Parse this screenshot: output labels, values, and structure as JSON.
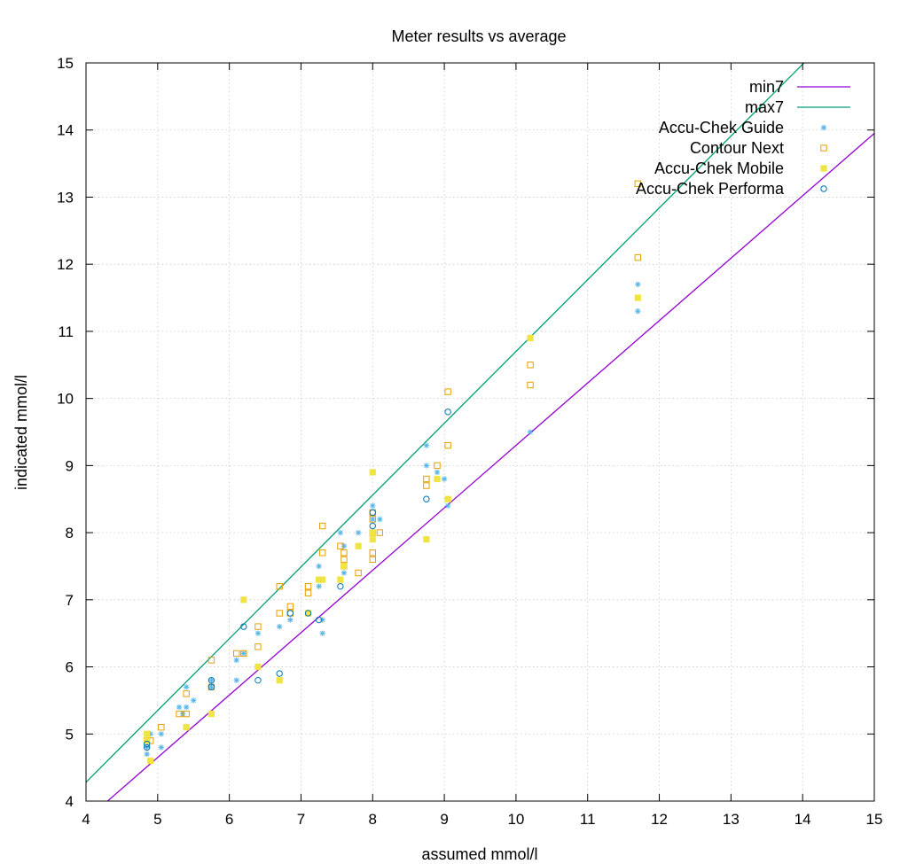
{
  "chart_data": {
    "type": "scatter",
    "title": "Meter results vs average",
    "xlabel": "assumed mmol/l",
    "ylabel": "indicated mmol/l",
    "xlim": [
      4,
      15
    ],
    "ylim": [
      4,
      15
    ],
    "xticks": [
      "4",
      "5",
      "6",
      "7",
      "8",
      "9",
      "10",
      "11",
      "12",
      "13",
      "14",
      "15"
    ],
    "yticks": [
      "4",
      "5",
      "6",
      "7",
      "8",
      "9",
      "10",
      "11",
      "12",
      "13",
      "14",
      "15"
    ],
    "grid": true,
    "legend_position": "top-right",
    "lines": [
      {
        "name": "min7",
        "color": "#9400d3",
        "slope": 0.93,
        "intercept": 0
      },
      {
        "name": "max7",
        "color": "#009e73",
        "slope": 1.07,
        "intercept": 0
      }
    ],
    "series": [
      {
        "name": "Accu-Chek Guide",
        "marker": "asterisk",
        "color": "#56b4e9",
        "points": [
          [
            4.85,
            4.7
          ],
          [
            4.85,
            4.8
          ],
          [
            4.9,
            5.0
          ],
          [
            5.05,
            5.0
          ],
          [
            5.05,
            4.8
          ],
          [
            5.3,
            5.4
          ],
          [
            5.35,
            5.3
          ],
          [
            5.4,
            5.7
          ],
          [
            5.4,
            5.4
          ],
          [
            5.5,
            5.5
          ],
          [
            5.75,
            5.7
          ],
          [
            5.75,
            5.8
          ],
          [
            6.1,
            5.8
          ],
          [
            6.1,
            6.1
          ],
          [
            6.2,
            6.2
          ],
          [
            6.4,
            6.5
          ],
          [
            6.7,
            6.6
          ],
          [
            6.85,
            6.7
          ],
          [
            7.25,
            7.5
          ],
          [
            7.25,
            7.2
          ],
          [
            7.3,
            6.5
          ],
          [
            7.3,
            6.7
          ],
          [
            7.55,
            8.0
          ],
          [
            7.6,
            7.8
          ],
          [
            7.6,
            7.4
          ],
          [
            7.8,
            8.0
          ],
          [
            8.0,
            8.4
          ],
          [
            8.0,
            8.2
          ],
          [
            8.1,
            8.2
          ],
          [
            8.75,
            9.3
          ],
          [
            8.75,
            9.0
          ],
          [
            8.9,
            8.9
          ],
          [
            9.0,
            8.8
          ],
          [
            9.05,
            8.4
          ],
          [
            10.2,
            9.5
          ],
          [
            11.7,
            11.7
          ],
          [
            11.7,
            11.3
          ]
        ]
      },
      {
        "name": "Contour Next",
        "marker": "open-square",
        "color": "#e69f00",
        "points": [
          [
            4.85,
            4.9
          ],
          [
            4.9,
            4.9
          ],
          [
            5.05,
            5.1
          ],
          [
            5.3,
            5.3
          ],
          [
            5.4,
            5.6
          ],
          [
            5.4,
            5.3
          ],
          [
            5.75,
            6.1
          ],
          [
            5.75,
            5.7
          ],
          [
            6.1,
            6.2
          ],
          [
            6.2,
            6.2
          ],
          [
            6.4,
            6.6
          ],
          [
            6.4,
            6.3
          ],
          [
            6.7,
            7.2
          ],
          [
            6.7,
            6.8
          ],
          [
            6.85,
            6.9
          ],
          [
            6.85,
            6.8
          ],
          [
            7.1,
            7.2
          ],
          [
            7.1,
            7.1
          ],
          [
            7.3,
            8.1
          ],
          [
            7.3,
            7.7
          ],
          [
            7.55,
            7.8
          ],
          [
            7.6,
            7.7
          ],
          [
            7.6,
            7.6
          ],
          [
            7.6,
            7.5
          ],
          [
            7.8,
            7.4
          ],
          [
            8.0,
            8.3
          ],
          [
            8.0,
            8.2
          ],
          [
            8.0,
            8.0
          ],
          [
            8.0,
            7.7
          ],
          [
            8.0,
            7.6
          ],
          [
            8.1,
            8.0
          ],
          [
            8.75,
            8.8
          ],
          [
            8.75,
            8.7
          ],
          [
            8.9,
            9.0
          ],
          [
            9.05,
            10.1
          ],
          [
            9.05,
            9.3
          ],
          [
            10.2,
            10.5
          ],
          [
            10.2,
            10.2
          ],
          [
            11.7,
            13.2
          ],
          [
            11.7,
            12.1
          ]
        ]
      },
      {
        "name": "Accu-Chek Mobile",
        "marker": "filled-square",
        "color": "#f0e442",
        "points": [
          [
            4.85,
            5.0
          ],
          [
            4.85,
            4.9
          ],
          [
            4.9,
            4.6
          ],
          [
            5.4,
            5.1
          ],
          [
            5.75,
            5.3
          ],
          [
            6.2,
            7.0
          ],
          [
            6.4,
            6.0
          ],
          [
            6.7,
            5.8
          ],
          [
            7.1,
            6.8
          ],
          [
            7.25,
            7.3
          ],
          [
            7.3,
            7.3
          ],
          [
            7.55,
            7.3
          ],
          [
            7.6,
            7.5
          ],
          [
            7.8,
            7.8
          ],
          [
            8.0,
            8.9
          ],
          [
            8.0,
            8.0
          ],
          [
            8.0,
            7.9
          ],
          [
            8.75,
            7.9
          ],
          [
            8.9,
            8.8
          ],
          [
            9.05,
            8.5
          ],
          [
            10.2,
            10.9
          ],
          [
            11.7,
            11.5
          ]
        ]
      },
      {
        "name": "Accu-Chek Performa",
        "marker": "open-circle",
        "color": "#0072b2",
        "points": [
          [
            4.85,
            4.8
          ],
          [
            4.85,
            4.85
          ],
          [
            5.75,
            5.8
          ],
          [
            5.75,
            5.7
          ],
          [
            6.2,
            6.6
          ],
          [
            6.4,
            5.8
          ],
          [
            6.7,
            5.9
          ],
          [
            6.85,
            6.8
          ],
          [
            7.1,
            6.8
          ],
          [
            7.25,
            6.7
          ],
          [
            7.55,
            7.2
          ],
          [
            8.0,
            8.3
          ],
          [
            8.0,
            8.1
          ],
          [
            8.75,
            8.5
          ],
          [
            9.05,
            9.8
          ]
        ]
      }
    ]
  }
}
